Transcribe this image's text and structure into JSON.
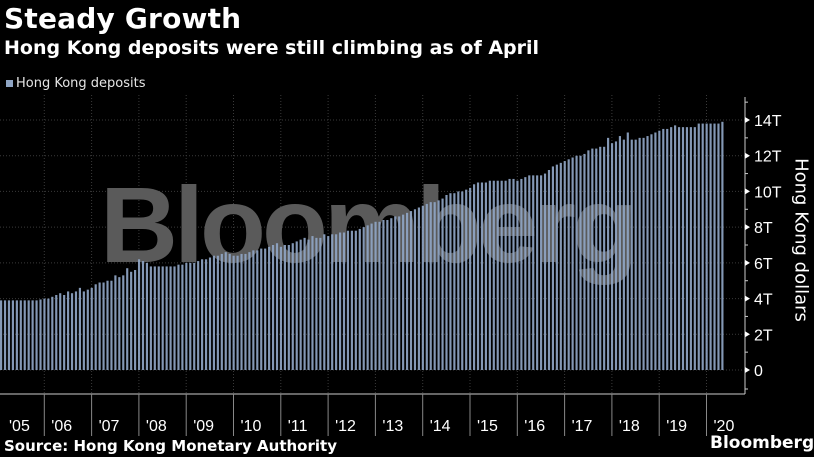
{
  "header": {
    "title": "Steady Growth",
    "subtitle": "Hong Kong deposits were still climbing as of April"
  },
  "legend": {
    "label": "Hong Kong deposits",
    "swatch_color": "#8fa5c4"
  },
  "axis": {
    "y_label": "Hong Kong dollars",
    "y_ticks": [
      "0",
      "2T",
      "4T",
      "6T",
      "8T",
      "10T",
      "12T",
      "14T"
    ],
    "x_ticks": [
      "'05",
      "'06",
      "'07",
      "'08",
      "'09",
      "'10",
      "'11",
      "'12",
      "'13",
      "'14",
      "'15",
      "'16",
      "'17",
      "'18",
      "'19",
      "'20"
    ]
  },
  "footer": {
    "source": "Source: Hong Kong Monetary Authority",
    "brand": "Bloomberg"
  },
  "watermark": "Bloomberg",
  "colors": {
    "background": "#000000",
    "bar": "#8fa5c4",
    "grid": "#3a3a3a",
    "axis": "#cccccc",
    "watermark": "#5a5a5a"
  },
  "chart_data": {
    "type": "bar",
    "title": "Steady Growth",
    "subtitle": "Hong Kong deposits were still climbing as of April",
    "xlabel": "",
    "ylabel": "Hong Kong dollars",
    "ylim": [
      0,
      15
    ],
    "y_unit": "trillion HKD",
    "y_ticks": [
      0,
      2,
      4,
      6,
      8,
      10,
      12,
      14
    ],
    "x_tick_labels": [
      "'05",
      "'06",
      "'07",
      "'08",
      "'09",
      "'10",
      "'11",
      "'12",
      "'13",
      "'14",
      "'15",
      "'16",
      "'17",
      "'18",
      "'19",
      "'20"
    ],
    "grid": true,
    "legend_position": "top-left",
    "frequency": "monthly",
    "start": "2005-01",
    "end": "2020-04",
    "series": [
      {
        "name": "Hong Kong deposits",
        "values": [
          3.9,
          3.9,
          3.9,
          3.9,
          3.9,
          3.9,
          3.9,
          3.9,
          3.9,
          3.9,
          3.95,
          4.0,
          4.0,
          4.1,
          4.2,
          4.3,
          4.2,
          4.4,
          4.3,
          4.4,
          4.6,
          4.4,
          4.5,
          4.6,
          4.8,
          4.9,
          4.9,
          5.0,
          5.0,
          5.3,
          5.2,
          5.3,
          5.7,
          5.5,
          5.6,
          6.2,
          6.1,
          6.0,
          5.8,
          5.8,
          5.8,
          5.8,
          5.8,
          5.8,
          5.8,
          5.9,
          5.9,
          6.0,
          6.0,
          6.0,
          6.1,
          6.2,
          6.2,
          6.3,
          6.4,
          6.4,
          6.5,
          6.6,
          6.5,
          6.4,
          6.4,
          6.5,
          6.5,
          6.6,
          6.7,
          6.7,
          6.8,
          6.8,
          6.9,
          7.0,
          7.1,
          6.9,
          7.0,
          7.0,
          7.1,
          7.2,
          7.3,
          7.4,
          7.3,
          7.5,
          7.4,
          7.4,
          7.6,
          7.5,
          7.6,
          7.6,
          7.7,
          7.7,
          7.8,
          7.8,
          7.8,
          7.9,
          8.0,
          8.1,
          8.2,
          8.3,
          8.3,
          8.4,
          8.4,
          8.5,
          8.6,
          8.6,
          8.7,
          8.8,
          8.9,
          9.0,
          9.1,
          9.2,
          9.3,
          9.4,
          9.4,
          9.5,
          9.6,
          9.8,
          9.9,
          9.9,
          10.0,
          10.0,
          10.1,
          10.2,
          10.4,
          10.5,
          10.5,
          10.5,
          10.6,
          10.6,
          10.6,
          10.6,
          10.6,
          10.7,
          10.7,
          10.6,
          10.7,
          10.8,
          10.9,
          10.9,
          10.9,
          10.9,
          11.0,
          11.2,
          11.4,
          11.5,
          11.6,
          11.7,
          11.8,
          11.9,
          12.0,
          12.0,
          12.1,
          12.3,
          12.4,
          12.4,
          12.5,
          12.5,
          13.0,
          12.7,
          12.8,
          13.1,
          12.9,
          13.3,
          12.9,
          12.9,
          13.0,
          13.0,
          13.1,
          13.2,
          13.3,
          13.4,
          13.5,
          13.5,
          13.6,
          13.7,
          13.6,
          13.6,
          13.6,
          13.6,
          13.6,
          13.8,
          13.8,
          13.8,
          13.8,
          13.8,
          13.8,
          13.9
        ]
      }
    ]
  }
}
